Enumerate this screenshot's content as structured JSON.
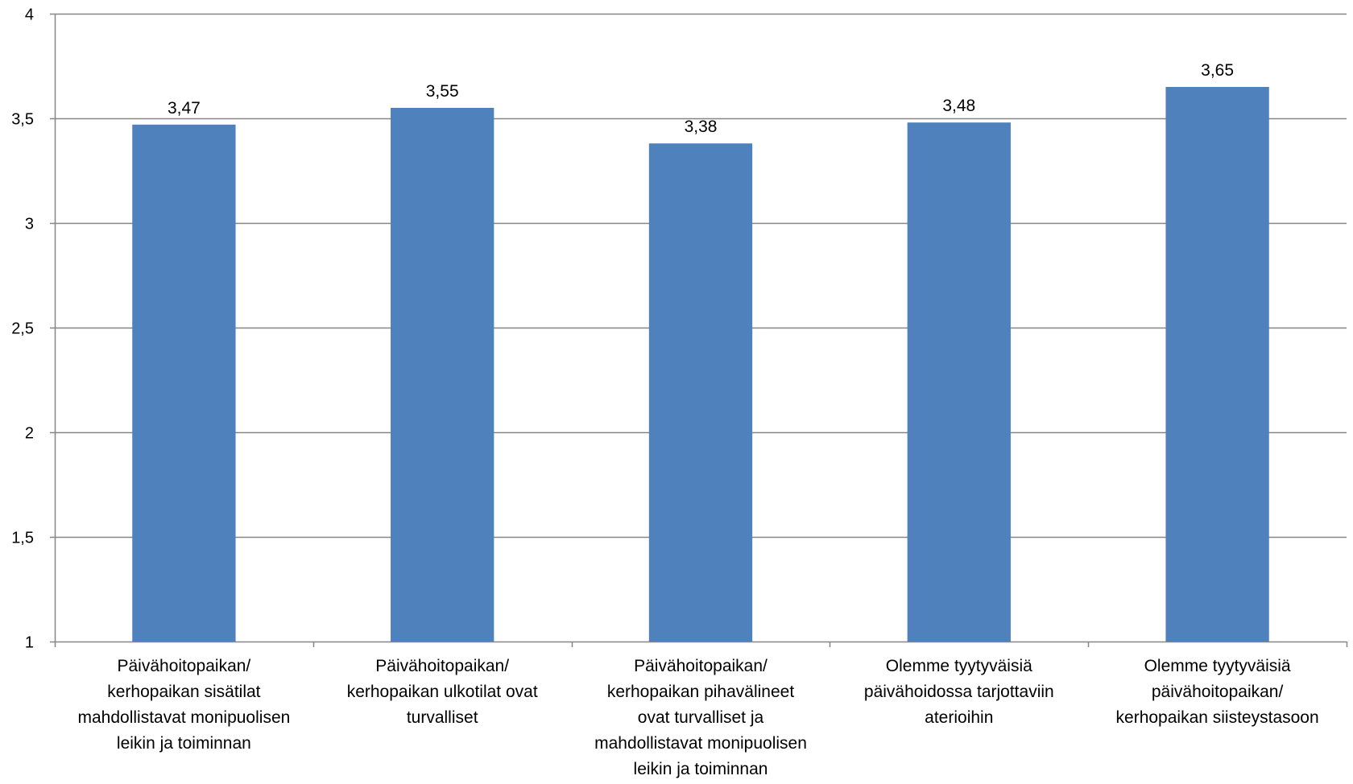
{
  "chart_data": {
    "type": "bar",
    "title": "",
    "xlabel": "",
    "ylabel": "",
    "ylim": [
      1,
      4
    ],
    "yticks": [
      "1",
      "1,5",
      "2",
      "2,5",
      "3",
      "3,5",
      "4"
    ],
    "ytick_values": [
      1,
      1.5,
      2,
      2.5,
      3,
      3.5,
      4
    ],
    "grid": true,
    "legend": "none",
    "bar_color": "#4F81BD",
    "gridline_color": "#868686",
    "categories": [
      [
        "Päivähoitopaikan/",
        "kerhopaikan sisätilat",
        "mahdollistavat monipuolisen",
        "leikin ja toiminnan"
      ],
      [
        "Päivähoitopaikan/",
        "kerhopaikan ulkotilat ovat",
        "turvalliset"
      ],
      [
        "Päivähoitopaikan/",
        "kerhopaikan pihavälineet",
        "ovat turvalliset ja",
        "mahdollistavat monipuolisen",
        "leikin ja toiminnan"
      ],
      [
        "Olemme tyytyväisiä",
        "päivähoidossa tarjottaviin",
        "aterioihin"
      ],
      [
        "Olemme tyytyväisiä",
        "päivähoitopaikan/",
        "kerhopaikan siisteystasoon"
      ]
    ],
    "values": [
      3.47,
      3.55,
      3.38,
      3.48,
      3.65
    ],
    "data_labels": [
      "3,47",
      "3,55",
      "3,38",
      "3,48",
      "3,65"
    ]
  }
}
